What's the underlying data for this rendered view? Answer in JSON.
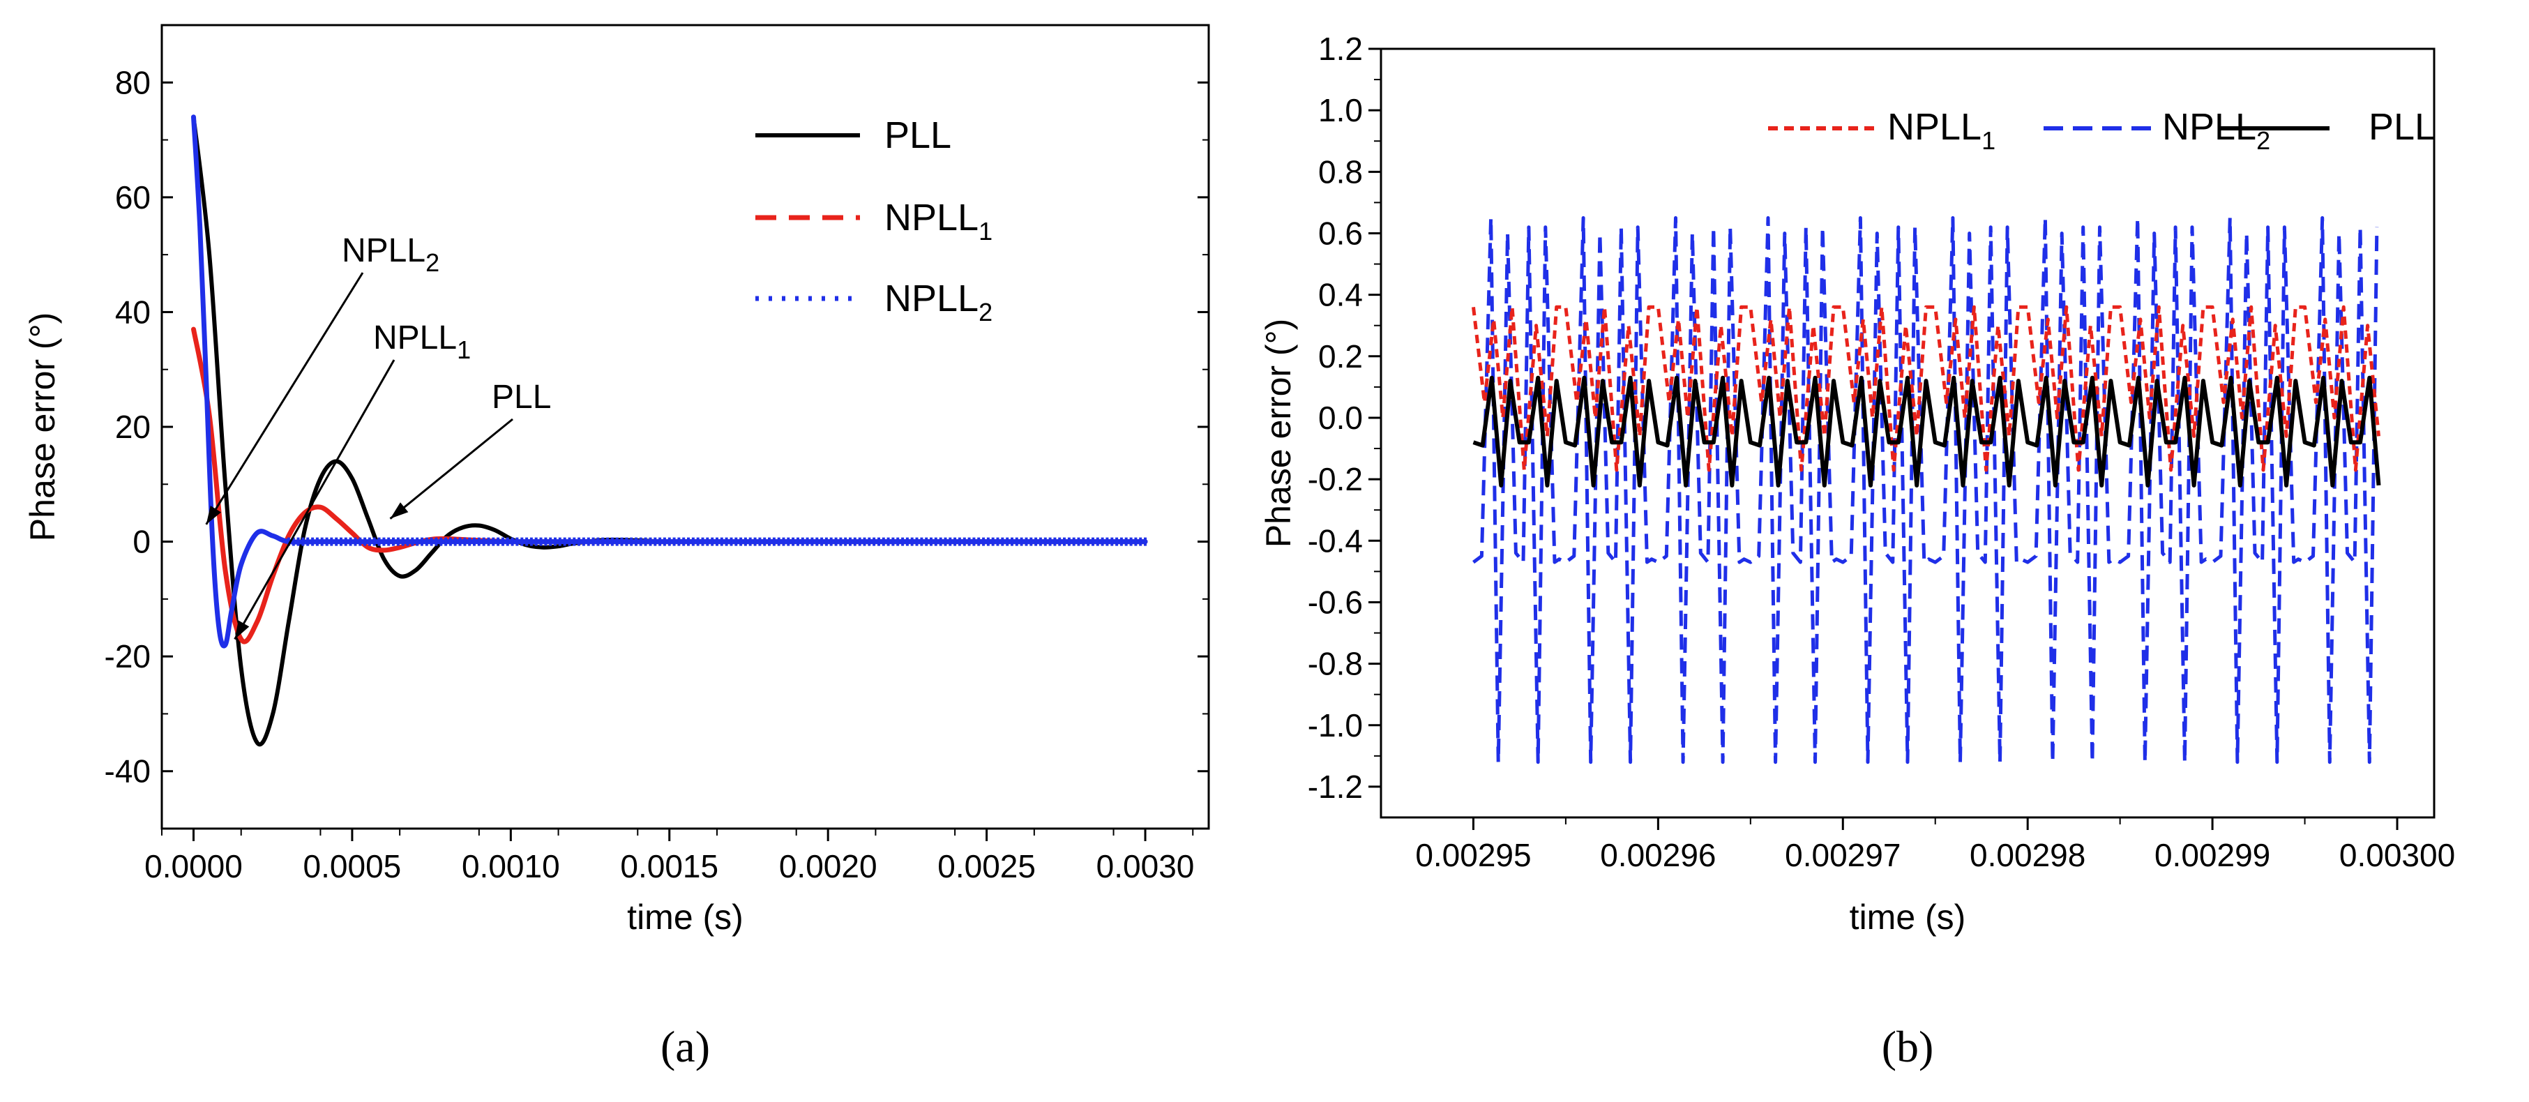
{
  "chart_data": [
    {
      "panel": "a",
      "type": "line",
      "xlabel": "time (s)",
      "ylabel": "Phase error (°)",
      "xlim": [
        -0.0001,
        0.0032
      ],
      "ylim": [
        -50,
        90
      ],
      "xticks": [
        0.0,
        0.0005,
        0.001,
        0.0015,
        0.002,
        0.0025,
        0.003
      ],
      "xtick_labels": [
        "0.0000",
        "0.0005",
        "0.0010",
        "0.0015",
        "0.0020",
        "0.0025",
        "0.0030"
      ],
      "yticks": [
        -40,
        -20,
        0,
        20,
        40,
        60,
        80
      ],
      "ytick_labels": [
        "-40",
        "-20",
        "0",
        "20",
        "40",
        "60",
        "80"
      ],
      "legend_position": "top-right",
      "series": [
        {
          "name": "PLL",
          "name_sub": "",
          "color": "#000000",
          "style": "solid",
          "x": [
            0,
            5e-05,
            0.0001,
            0.00015,
            0.0002,
            0.00025,
            0.0003,
            0.00035,
            0.0004,
            0.00045,
            0.0005,
            0.00055,
            0.0006,
            0.00065,
            0.0007,
            0.00075,
            0.0008,
            0.00085,
            0.0009,
            0.00095,
            0.001,
            0.00105,
            0.0011,
            0.00115,
            0.0012,
            0.0013,
            0.0014,
            0.0015,
            0.0017,
            0.002,
            0.0025,
            0.003
          ],
          "y": [
            74,
            50,
            10,
            -22,
            -35,
            -30,
            -14,
            2,
            11,
            14,
            11,
            4,
            -3,
            -6,
            -5,
            -2,
            1,
            2.5,
            2.8,
            2,
            0.5,
            -0.6,
            -1,
            -0.8,
            -0.3,
            0.3,
            0.2,
            0,
            0,
            0,
            0,
            0
          ]
        },
        {
          "name": "NPLL",
          "name_sub": "1",
          "color": "#e8231b",
          "style": "dashed",
          "x": [
            0,
            5e-05,
            0.0001,
            0.00015,
            0.0002,
            0.00025,
            0.0003,
            0.00035,
            0.0004,
            0.00045,
            0.0005,
            0.00055,
            0.0006,
            0.00065,
            0.0007,
            0.00075,
            0.0008,
            0.0009,
            0.001,
            0.0012,
            0.0015,
            0.002,
            0.0025,
            0.003
          ],
          "y": [
            37,
            22,
            -5,
            -17,
            -14,
            -6,
            1,
            5,
            6,
            4,
            1.5,
            -1,
            -1.5,
            -1,
            -0.2,
            0.4,
            0.5,
            0.2,
            0,
            0,
            0,
            0,
            0,
            0
          ]
        },
        {
          "name": "NPLL",
          "name_sub": "2",
          "color": "#1f2fe8",
          "style": "dotted",
          "x": [
            0,
            2e-05,
            4e-05,
            6e-05,
            8e-05,
            0.0001,
            0.00012,
            0.00015,
            0.0002,
            0.00025,
            0.0003,
            0.0004,
            0.0005,
            0.0007,
            0.001,
            0.0015,
            0.002,
            0.0025,
            0.003
          ],
          "y": [
            74,
            55,
            28,
            0,
            -15,
            -18,
            -12,
            -4,
            1.5,
            1,
            0,
            0,
            0,
            0,
            0,
            0,
            0,
            0,
            0
          ]
        }
      ],
      "annotations": [
        {
          "text": "NPLL",
          "sub": "2",
          "target_x": 4e-05,
          "target_y": 3
        },
        {
          "text": "NPLL",
          "sub": "1",
          "target_x": 0.00013,
          "target_y": -17
        },
        {
          "text": "PLL",
          "sub": "",
          "target_x": 0.00062,
          "target_y": 4
        }
      ],
      "panel_label": "(a)"
    },
    {
      "panel": "b",
      "type": "line",
      "xlabel": "time (s)",
      "ylabel": "Phase error (°)",
      "xlim": [
        0.002945,
        0.003002
      ],
      "ylim": [
        -1.3,
        1.2
      ],
      "xticks": [
        0.00295,
        0.00296,
        0.00297,
        0.00298,
        0.00299,
        0.003
      ],
      "xtick_labels": [
        "0.00295",
        "0.00296",
        "0.00297",
        "0.00298",
        "0.00299",
        "0.00300"
      ],
      "yticks": [
        -1.2,
        -1.0,
        -0.8,
        -0.6,
        -0.4,
        -0.2,
        0.0,
        0.2,
        0.4,
        0.6,
        0.8,
        1.0,
        1.2
      ],
      "ytick_labels": [
        "-1.2",
        "-1.0",
        "-0.8",
        "-0.6",
        "-0.4",
        "-0.2",
        "0.0",
        "0.2",
        "0.4",
        "0.6",
        "0.8",
        "1.0",
        "1.2"
      ],
      "legend_position": "top",
      "period": 5e-06,
      "x_start": 0.00295,
      "x_end": 0.002999,
      "series": [
        {
          "name": "NPLL",
          "name_sub": "1",
          "color": "#e8231b",
          "style": "dashed",
          "pattern_phase": [
            0,
            0.12,
            0.22,
            0.32,
            0.42,
            0.55,
            0.68,
            0.8,
            0.9
          ],
          "pattern_value": [
            0.36,
            0.05,
            0.32,
            0.0,
            0.36,
            -0.17,
            0.3,
            -0.06,
            0.36
          ]
        },
        {
          "name": "NPLL",
          "name_sub": "2",
          "color": "#1f2fe8",
          "style": "dashed",
          "pattern_phase": [
            0,
            0.09,
            0.19,
            0.27,
            0.37,
            0.46,
            0.54,
            0.6,
            0.7,
            0.78,
            0.88,
            0.93
          ],
          "pattern_value": [
            -0.47,
            -0.45,
            0.65,
            -1.12,
            0.6,
            -0.44,
            -0.47,
            0.62,
            -1.12,
            0.62,
            -0.47,
            -0.46
          ]
        },
        {
          "name": "PLL",
          "name_sub": "",
          "color": "#000000",
          "style": "solid",
          "pattern_phase": [
            0,
            0.1,
            0.2,
            0.3,
            0.4,
            0.5,
            0.6,
            0.7,
            0.8,
            0.9
          ],
          "pattern_value": [
            -0.08,
            -0.09,
            0.13,
            -0.22,
            0.12,
            -0.08,
            -0.08,
            0.13,
            -0.22,
            0.12
          ]
        }
      ],
      "panel_label": "(b)"
    }
  ]
}
